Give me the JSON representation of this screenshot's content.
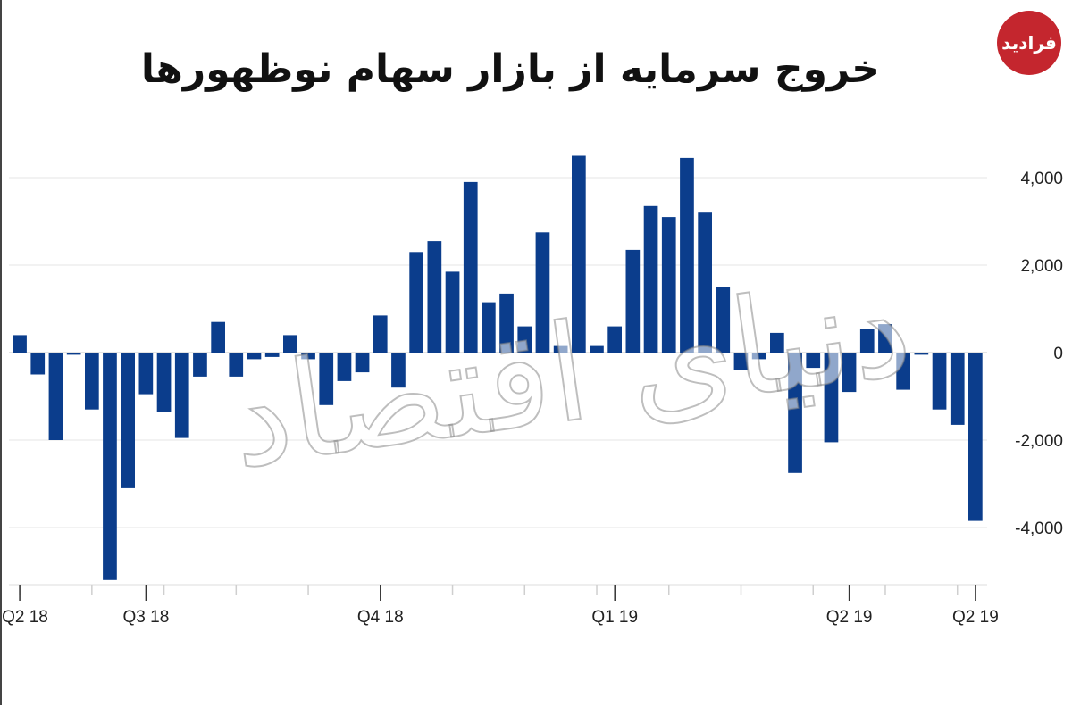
{
  "title": "خروج سرمایه از بازار سهام نوظهورها",
  "logo": {
    "text": "فرادید",
    "color": "#c4262e"
  },
  "watermark": "دنیای اقتصاد",
  "chart_data": {
    "type": "bar",
    "bar_color": "#0b3d8c",
    "ylim": [
      -5300,
      4600
    ],
    "yticks": [
      4000,
      2000,
      0,
      -2000,
      -4000
    ],
    "ytick_labels": [
      "4,000",
      "2,000",
      "0",
      "-2,000",
      "-4,000"
    ],
    "xtick_labels": [
      {
        "index": 0,
        "label": "Q2 18"
      },
      {
        "index": 7,
        "label": "Q3 18"
      },
      {
        "index": 20,
        "label": "Q4 18"
      },
      {
        "index": 33,
        "label": "Q1 19"
      },
      {
        "index": 46,
        "label": "Q2 19"
      },
      {
        "index": 53,
        "label": "Q2 19"
      }
    ],
    "values": [
      400,
      -500,
      -2000,
      -50,
      -1300,
      -5200,
      -3100,
      -950,
      -1350,
      -1950,
      -550,
      700,
      -550,
      -150,
      -100,
      400,
      -150,
      -1200,
      -650,
      -450,
      850,
      -800,
      2300,
      2550,
      1850,
      3900,
      1150,
      1350,
      600,
      2750,
      150,
      4500,
      150,
      600,
      2350,
      3350,
      3100,
      4450,
      3200,
      1500,
      -400,
      -150,
      450,
      -2750,
      -350,
      -2050,
      -900,
      550,
      650,
      -850,
      -50,
      -1300,
      -1650,
      -3850
    ]
  }
}
